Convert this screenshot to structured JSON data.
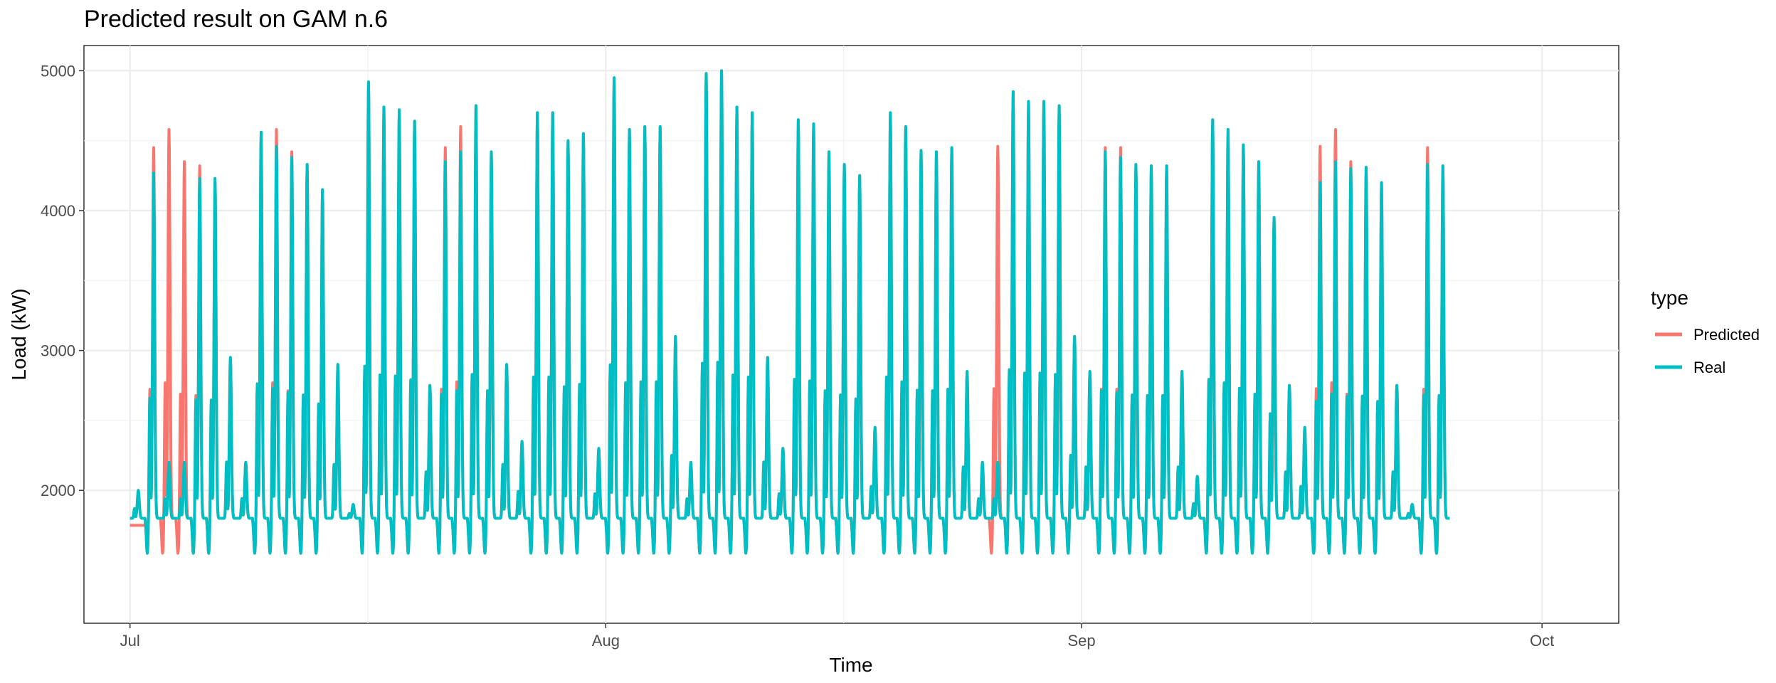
{
  "chart_data": {
    "type": "line",
    "title": "Predicted result on GAM n.6",
    "xlabel": "Time",
    "ylabel": "Load (kW)",
    "x_ticks": [
      "Jul",
      "Aug",
      "Sep",
      "Oct"
    ],
    "x_tick_dates": [
      "2019-07-01",
      "2019-08-01",
      "2019-09-01",
      "2019-10-01"
    ],
    "xlim": [
      "2019-06-28",
      "2019-10-06"
    ],
    "y_ticks": [
      2000,
      3000,
      4000,
      5000
    ],
    "ylim": [
      1050,
      5180
    ],
    "grid": true,
    "legend": {
      "title": "type",
      "position": "right"
    },
    "series": [
      {
        "name": "Predicted",
        "color": "#F8766D"
      },
      {
        "name": "Real",
        "color": "#00BFC4"
      }
    ],
    "daily_peaks": {
      "dates_start": "2019-07-01",
      "predicted": [
        1750,
        4450,
        4580,
        4350,
        4320,
        4200,
        2950,
        2200,
        4560,
        4580,
        4420,
        4330,
        4150,
        2900,
        1900,
        4920,
        4740,
        4720,
        4640,
        2750,
        4450,
        4600,
        4750,
        4420,
        2900,
        2350,
        4700,
        4700,
        4500,
        4550,
        2300,
        4950,
        4580,
        4600,
        4600,
        3100,
        2200,
        4980,
        5000,
        4740,
        4700,
        2950,
        2300,
        4650,
        4620,
        4420,
        4330,
        4250,
        2450,
        4700,
        4600,
        4430,
        4420,
        4450,
        2850,
        2200,
        4460,
        4850,
        4780,
        4780,
        4750,
        3100,
        2850,
        4450,
        4450,
        4330,
        4320,
        4320,
        2850,
        2100,
        4650,
        4580,
        4470,
        4350,
        3950,
        2750,
        2450,
        4460,
        4580,
        4350,
        4310,
        4200,
        2750,
        1900,
        4450,
        4320
      ],
      "real": [
        2000,
        4270,
        2200,
        2200,
        4230,
        4230,
        2950,
        2200,
        4560,
        4460,
        4380,
        4330,
        4150,
        2900,
        1900,
        4920,
        4740,
        4720,
        4640,
        2750,
        4350,
        4420,
        4750,
        4420,
        2900,
        2350,
        4700,
        4700,
        4500,
        4550,
        2300,
        4950,
        4580,
        4600,
        4600,
        3100,
        2200,
        4980,
        5000,
        4740,
        4700,
        2950,
        2300,
        4650,
        4620,
        4420,
        4330,
        4250,
        2450,
        4700,
        4600,
        4430,
        4420,
        4450,
        2850,
        2200,
        2200,
        4850,
        4780,
        4780,
        4750,
        3100,
        2850,
        4420,
        4380,
        4330,
        4320,
        4320,
        2850,
        2100,
        4650,
        4580,
        4470,
        4350,
        3950,
        2750,
        2450,
        4200,
        4350,
        4300,
        4310,
        4200,
        2750,
        1900,
        4330,
        4320
      ]
    }
  }
}
